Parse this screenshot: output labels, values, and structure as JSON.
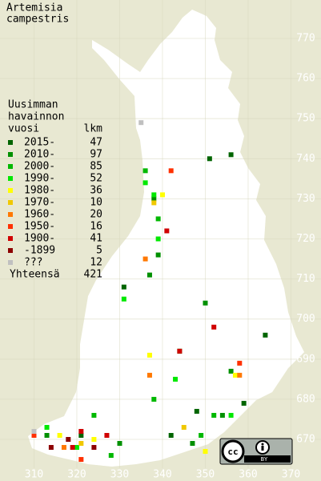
{
  "title": [
    "Artemisia",
    "campestris"
  ],
  "legend": {
    "header": [
      "Uusimman",
      "havainnon",
      "vuosi"
    ],
    "count_header": "lkm",
    "items": [
      {
        "label": "2015-",
        "count": 47,
        "color": "#006400",
        "points": [
          [
            356,
            741
          ],
          [
            351,
            740
          ],
          [
            331,
            708
          ],
          [
            359,
            679
          ],
          [
            348,
            677
          ],
          [
            342,
            671
          ],
          [
            321,
            671
          ],
          [
            364,
            696
          ]
        ]
      },
      {
        "label": "2010-",
        "count": 97,
        "color": "#009000",
        "points": [
          [
            338,
            730
          ],
          [
            339,
            716
          ],
          [
            337,
            711
          ],
          [
            350,
            704
          ],
          [
            356,
            687
          ],
          [
            354,
            676
          ],
          [
            330,
            669
          ],
          [
            347,
            669
          ],
          [
            313,
            671
          ]
        ]
      },
      {
        "label": "2000-",
        "count": 85,
        "color": "#00b800",
        "points": [
          [
            336,
            737
          ],
          [
            339,
            725
          ],
          [
            344,
            692
          ],
          [
            338,
            680
          ],
          [
            352,
            676
          ],
          [
            349,
            671
          ],
          [
            324,
            676
          ],
          [
            328,
            666
          ]
        ]
      },
      {
        "label": "1990-",
        "count": 52,
        "color": "#00e800",
        "points": [
          [
            336,
            734
          ],
          [
            338,
            731
          ],
          [
            339,
            720
          ],
          [
            331,
            705
          ],
          [
            343,
            685
          ],
          [
            356,
            676
          ],
          [
            313,
            673
          ],
          [
            320,
            668
          ]
        ]
      },
      {
        "label": "1980-",
        "count": 36,
        "color": "#ffff00",
        "points": [
          [
            340,
            731
          ],
          [
            337,
            691
          ],
          [
            357,
            686
          ],
          [
            324,
            670
          ],
          [
            316,
            671
          ],
          [
            350,
            667
          ]
        ]
      },
      {
        "label": "1970-",
        "count": 10,
        "color": "#f0c800",
        "points": [
          [
            338,
            729
          ],
          [
            321,
            669
          ],
          [
            345,
            673
          ]
        ]
      },
      {
        "label": "1960-",
        "count": 20,
        "color": "#ff7800",
        "points": [
          [
            336,
            715
          ],
          [
            337,
            686
          ],
          [
            358,
            686
          ],
          [
            317,
            668
          ]
        ]
      },
      {
        "label": "1950-",
        "count": 16,
        "color": "#ff3000",
        "points": [
          [
            342,
            737
          ],
          [
            358,
            689
          ],
          [
            310,
            671
          ],
          [
            321,
            665
          ]
        ]
      },
      {
        "label": "1900-",
        "count": 41,
        "color": "#d00000",
        "points": [
          [
            341,
            722
          ],
          [
            352,
            698
          ],
          [
            344,
            692
          ],
          [
            319,
            668
          ],
          [
            321,
            672
          ],
          [
            327,
            671
          ]
        ]
      },
      {
        "label": "-1899",
        "count": 5,
        "color": "#8c0000",
        "points": [
          [
            318,
            670
          ],
          [
            314,
            668
          ],
          [
            324,
            668
          ]
        ]
      },
      {
        "label": "???",
        "count": 12,
        "color": "#c0c0c0",
        "points": [
          [
            335,
            749
          ],
          [
            310,
            672
          ]
        ]
      }
    ],
    "total_label": "Yhteensä",
    "total": 421
  },
  "xticks": [
    310,
    320,
    330,
    340,
    350,
    360,
    370
  ],
  "yticks": [
    670,
    680,
    690,
    700,
    710,
    720,
    730,
    740,
    750,
    760,
    770
  ],
  "license_badge": "BY"
}
